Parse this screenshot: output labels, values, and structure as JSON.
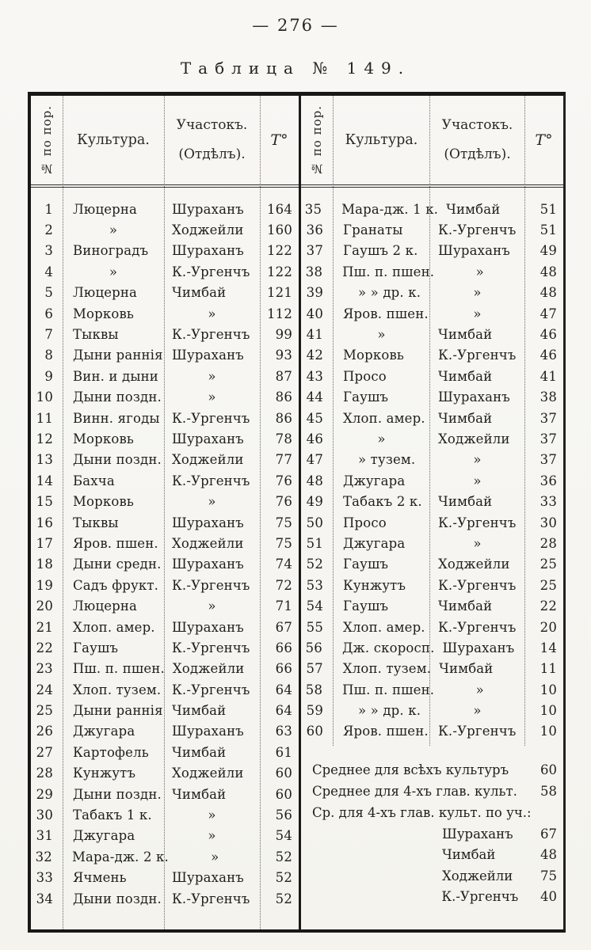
{
  "page": {
    "number": "— 276 —",
    "title": "Таблица № 149."
  },
  "table": {
    "header": {
      "num": "№ по пор.",
      "culture": "Культура.",
      "plot_line1": "Участокъ.",
      "plot_line2": "(Отдѣлъ).",
      "temp": "T°"
    },
    "left_rows": [
      {
        "n": "1",
        "c": "Люцерна",
        "p": "Шураханъ",
        "t": "164"
      },
      {
        "n": "2",
        "c": "»",
        "p": "Ходжейли",
        "t": "160"
      },
      {
        "n": "3",
        "c": "Виноградъ",
        "p": "Шураханъ",
        "t": "122"
      },
      {
        "n": "4",
        "c": "»",
        "p": "К.-Ургенчъ",
        "t": "122"
      },
      {
        "n": "5",
        "c": "Люцерна",
        "p": "Чимбай",
        "t": "121"
      },
      {
        "n": "6",
        "c": "Морковь",
        "p": "»",
        "t": "112"
      },
      {
        "n": "7",
        "c": "Тыквы",
        "p": "К.-Ургенчъ",
        "t": "99"
      },
      {
        "n": "8",
        "c": "Дыни раннія",
        "p": "Шураханъ",
        "t": "93"
      },
      {
        "n": "9",
        "c": "Вин. и дыни",
        "p": "»",
        "t": "87"
      },
      {
        "n": "10",
        "c": "Дыни поздн.",
        "p": "»",
        "t": "86"
      },
      {
        "n": "11",
        "c": "Винн. ягоды",
        "p": "К.-Ургенчъ",
        "t": "86"
      },
      {
        "n": "12",
        "c": "Морковь",
        "p": "Шураханъ",
        "t": "78"
      },
      {
        "n": "13",
        "c": "Дыни поздн.",
        "p": "Ходжейли",
        "t": "77"
      },
      {
        "n": "14",
        "c": "Бахча",
        "p": "К.-Ургенчъ",
        "t": "76"
      },
      {
        "n": "15",
        "c": "Морковь",
        "p": "»",
        "t": "76"
      },
      {
        "n": "16",
        "c": "Тыквы",
        "p": "Шураханъ",
        "t": "75"
      },
      {
        "n": "17",
        "c": "Яров. пшен.",
        "p": "Ходжейли",
        "t": "75"
      },
      {
        "n": "18",
        "c": "Дыни средн.",
        "p": "Шураханъ",
        "t": "74"
      },
      {
        "n": "19",
        "c": "Садъ фрукт.",
        "p": "К.-Ургенчъ",
        "t": "72"
      },
      {
        "n": "20",
        "c": "Люцерна",
        "p": "»",
        "t": "71"
      },
      {
        "n": "21",
        "c": "Хлоп. амер.",
        "p": "Шураханъ",
        "t": "67"
      },
      {
        "n": "22",
        "c": "Гаушъ",
        "p": "К.-Ургенчъ",
        "t": "66"
      },
      {
        "n": "23",
        "c": "Пш. п. пшен.",
        "p": "Ходжейли",
        "t": "66"
      },
      {
        "n": "24",
        "c": "Хлоп. тузем.",
        "p": "К.-Ургенчъ",
        "t": "64"
      },
      {
        "n": "25",
        "c": "Дыни раннія",
        "p": "Чимбай",
        "t": "64"
      },
      {
        "n": "26",
        "c": "Джугара",
        "p": "Шураханъ",
        "t": "63"
      },
      {
        "n": "27",
        "c": "Картофель",
        "p": "Чимбай",
        "t": "61"
      },
      {
        "n": "28",
        "c": "Кунжутъ",
        "p": "Ходжейли",
        "t": "60"
      },
      {
        "n": "29",
        "c": "Дыни поздн.",
        "p": "Чимбай",
        "t": "60"
      },
      {
        "n": "30",
        "c": "Табакъ 1 к.",
        "p": "»",
        "t": "56"
      },
      {
        "n": "31",
        "c": "Джугара",
        "p": "»",
        "t": "54"
      },
      {
        "n": "32",
        "c": "Мара-дж. 2 к.",
        "p": "»",
        "t": "52"
      },
      {
        "n": "33",
        "c": "Ячмень",
        "p": "Шураханъ",
        "t": "52"
      },
      {
        "n": "34",
        "c": "Дыни поздн.",
        "p": "К.-Ургенчъ",
        "t": "52"
      }
    ],
    "right_rows": [
      {
        "n": "35",
        "c": "Мара-дж. 1 к.",
        "p": "Чимбай",
        "t": "51"
      },
      {
        "n": "36",
        "c": "Гранаты",
        "p": "К.-Ургенчъ",
        "t": "51"
      },
      {
        "n": "37",
        "c": "Гаушъ 2 к.",
        "p": "Шураханъ",
        "t": "49"
      },
      {
        "n": "38",
        "c": "Пш. п. пшен.",
        "p": "»",
        "t": "48"
      },
      {
        "n": "39",
        "c": "» » др. к.",
        "p": "»",
        "t": "48"
      },
      {
        "n": "40",
        "c": "Яров. пшен.",
        "p": "»",
        "t": "47"
      },
      {
        "n": "41",
        "c": "»",
        "p": "Чимбай",
        "t": "46"
      },
      {
        "n": "42",
        "c": "Морковь",
        "p": "К.-Ургенчъ",
        "t": "46"
      },
      {
        "n": "43",
        "c": "Просо",
        "p": "Чимбай",
        "t": "41"
      },
      {
        "n": "44",
        "c": "Гаушъ",
        "p": "Шураханъ",
        "t": "38"
      },
      {
        "n": "45",
        "c": "Хлоп. амер.",
        "p": "Чимбай",
        "t": "37"
      },
      {
        "n": "46",
        "c": "»",
        "p": "Ходжейли",
        "t": "37"
      },
      {
        "n": "47",
        "c": "» тузем.",
        "p": "»",
        "t": "37"
      },
      {
        "n": "48",
        "c": "Джугара",
        "p": "»",
        "t": "36"
      },
      {
        "n": "49",
        "c": "Табакъ 2 к.",
        "p": "Чимбай",
        "t": "33"
      },
      {
        "n": "50",
        "c": "Просо",
        "p": "К.-Ургенчъ",
        "t": "30"
      },
      {
        "n": "51",
        "c": "Джугара",
        "p": "»",
        "t": "28"
      },
      {
        "n": "52",
        "c": "Гаушъ",
        "p": "Ходжейли",
        "t": "25"
      },
      {
        "n": "53",
        "c": "Кунжутъ",
        "p": "К.-Ургенчъ",
        "t": "25"
      },
      {
        "n": "54",
        "c": "Гаушъ",
        "p": "Чимбай",
        "t": "22"
      },
      {
        "n": "55",
        "c": "Хлоп. амер.",
        "p": "К.-Ургенчъ",
        "t": "20"
      },
      {
        "n": "56",
        "c": "Дж. скоросп.",
        "p": "Шураханъ",
        "t": "14"
      },
      {
        "n": "57",
        "c": "Хлоп. тузем.",
        "p": "Чимбай",
        "t": "11"
      },
      {
        "n": "58",
        "c": "Пш. п. пшен.",
        "p": "»",
        "t": "10"
      },
      {
        "n": "59",
        "c": "» » др. к.",
        "p": "»",
        "t": "10"
      },
      {
        "n": "60",
        "c": "Яров. пшен.",
        "p": "К.-Ургенчъ",
        "t": "10"
      }
    ],
    "summary_lines": [
      {
        "label": "Среднее для всѣхъ культуръ",
        "value": "60"
      },
      {
        "label": "Среднее для 4-хъ глав. культ.",
        "value": "58"
      },
      {
        "label": "Ср. для 4-хъ глав. культ. по уч.:",
        "value": ""
      }
    ],
    "summary_locations": [
      {
        "label": "Шураханъ",
        "value": "67"
      },
      {
        "label": "Чимбай",
        "value": "48"
      },
      {
        "label": "Ходжейли",
        "value": "75"
      },
      {
        "label": "К.-Ургенчъ",
        "value": "40"
      }
    ]
  }
}
